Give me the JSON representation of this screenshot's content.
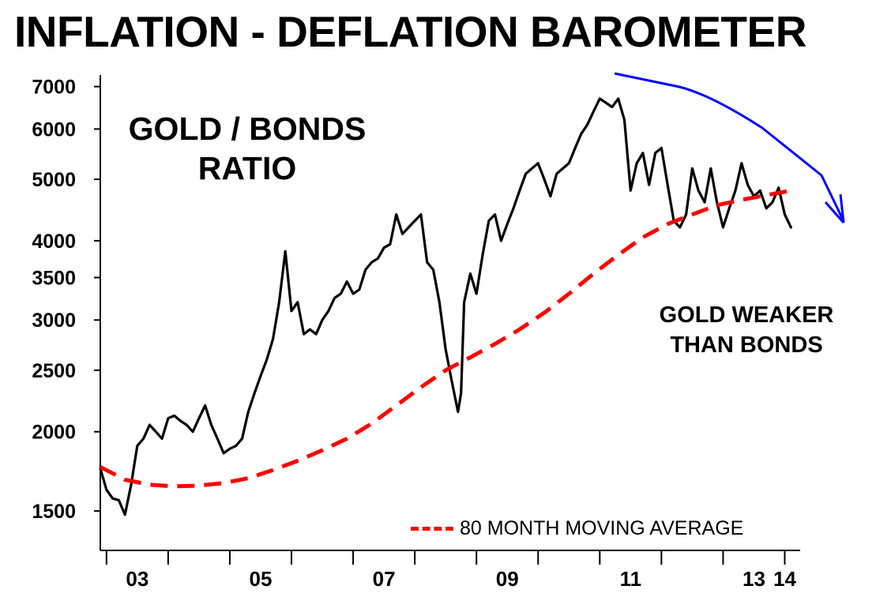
{
  "title": "INFLATION - DEFLATION BAROMETER",
  "annotations": {
    "main": [
      "GOLD / BONDS",
      "RATIO"
    ],
    "right": [
      "GOLD WEAKER",
      "THAN BONDS"
    ]
  },
  "legend": {
    "label": "80 MONTH MOVING AVERAGE"
  },
  "colors": {
    "ratio": "#000000",
    "moving_average": "#ff0000",
    "arrow": "#0000ff"
  },
  "chart_data": {
    "type": "line",
    "title": "INFLATION - DEFLATION BAROMETER",
    "xlabel": "",
    "ylabel": "",
    "yscale": "log",
    "ylim": [
      1300,
      7300
    ],
    "xlim": [
      2002.9,
      2014.25
    ],
    "yticks": [
      1500,
      2000,
      2500,
      3000,
      3500,
      4000,
      5000,
      6000,
      7000
    ],
    "xticks": [
      {
        "label": "03",
        "value": 2003.5
      },
      {
        "label": "05",
        "value": 2005.5
      },
      {
        "label": "07",
        "value": 2007.5
      },
      {
        "label": "09",
        "value": 2009.5
      },
      {
        "label": "11",
        "value": 2011.5
      },
      {
        "label": "13",
        "value": 2013.5
      },
      {
        "label": "14",
        "value": 2014.0
      }
    ],
    "grid": false,
    "legend_position": "bottom-right",
    "series": [
      {
        "x": [
          2002.9,
          2003.0,
          2003.1,
          2003.2,
          2003.3,
          2003.4,
          2003.5,
          2003.6,
          2003.7,
          2003.8,
          2003.9,
          2004.0,
          2004.1,
          2004.2,
          2004.3,
          2004.4,
          2004.5,
          2004.6,
          2004.7,
          2004.8,
          2004.9,
          2005.0,
          2005.1,
          2005.2,
          2005.3,
          2005.4,
          2005.5,
          2005.6,
          2005.7,
          2005.8,
          2005.9,
          2006.0,
          2006.1,
          2006.2,
          2006.3,
          2006.4,
          2006.5,
          2006.6,
          2006.7,
          2006.8,
          2006.9,
          2007.0,
          2007.1,
          2007.2,
          2007.3,
          2007.4,
          2007.5,
          2007.6,
          2007.7,
          2007.8,
          2007.9,
          2008.0,
          2008.1,
          2008.2,
          2008.3,
          2008.4,
          2008.5,
          2008.6,
          2008.7,
          2008.75,
          2008.8,
          2008.9,
          2009.0,
          2009.1,
          2009.2,
          2009.3,
          2009.4,
          2009.5,
          2009.6,
          2009.7,
          2009.8,
          2009.9,
          2010.0,
          2010.1,
          2010.2,
          2010.3,
          2010.4,
          2010.5,
          2010.6,
          2010.7,
          2010.8,
          2010.9,
          2011.0,
          2011.1,
          2011.2,
          2011.3,
          2011.4,
          2011.5,
          2011.6,
          2011.7,
          2011.8,
          2011.9,
          2012.0,
          2012.1,
          2012.2,
          2012.3,
          2012.4,
          2012.5,
          2012.6,
          2012.7,
          2012.8,
          2012.9,
          2013.0,
          2013.1,
          2013.2,
          2013.3,
          2013.4,
          2013.5,
          2013.6,
          2013.7,
          2013.8,
          2013.9,
          2014.0,
          2014.1
        ],
        "values": [
          1750,
          1620,
          1570,
          1560,
          1480,
          1650,
          1900,
          1950,
          2050,
          2000,
          1950,
          2100,
          2120,
          2080,
          2050,
          2000,
          2100,
          2200,
          2050,
          1950,
          1850,
          1880,
          1900,
          1950,
          2150,
          2300,
          2450,
          2600,
          2800,
          3200,
          3850,
          3100,
          3200,
          2850,
          2900,
          2850,
          3000,
          3100,
          3250,
          3300,
          3450,
          3300,
          3350,
          3600,
          3700,
          3750,
          3900,
          3950,
          4400,
          4100,
          4200,
          4300,
          4400,
          3700,
          3600,
          3200,
          2700,
          2400,
          2150,
          2300,
          3200,
          3550,
          3300,
          3800,
          4300,
          4400,
          4000,
          4250,
          4500,
          4800,
          5100,
          5200,
          5300,
          5000,
          4700,
          5100,
          5200,
          5300,
          5600,
          5900,
          6100,
          6400,
          6700,
          6600,
          6500,
          6700,
          6200,
          4800,
          5300,
          5500,
          4900,
          5500,
          5600,
          4900,
          4300,
          4200,
          4400,
          5200,
          4800,
          4600,
          5200,
          4600,
          4200,
          4500,
          4800,
          5300,
          4900,
          4700,
          4800,
          4500,
          4600,
          4850,
          4400,
          4200
        ],
        "color": "#000000"
      },
      {
        "name": "80 MONTH MOVING AVERAGE",
        "x": [
          2002.9,
          2003.3,
          2003.7,
          2004.1,
          2004.5,
          2004.9,
          2005.3,
          2005.7,
          2006.1,
          2006.5,
          2006.9,
          2007.3,
          2007.7,
          2008.1,
          2008.5,
          2008.9,
          2009.3,
          2009.7,
          2010.1,
          2010.5,
          2010.9,
          2011.3,
          2011.7,
          2012.1,
          2012.5,
          2012.9,
          2013.3,
          2013.7,
          2014.1
        ],
        "values": [
          1760,
          1680,
          1650,
          1640,
          1645,
          1660,
          1690,
          1740,
          1800,
          1870,
          1950,
          2060,
          2200,
          2350,
          2500,
          2620,
          2750,
          2900,
          3080,
          3300,
          3550,
          3800,
          4050,
          4250,
          4400,
          4550,
          4640,
          4720,
          4800
        ],
        "color": "#ff0000",
        "dashed": true
      }
    ]
  }
}
